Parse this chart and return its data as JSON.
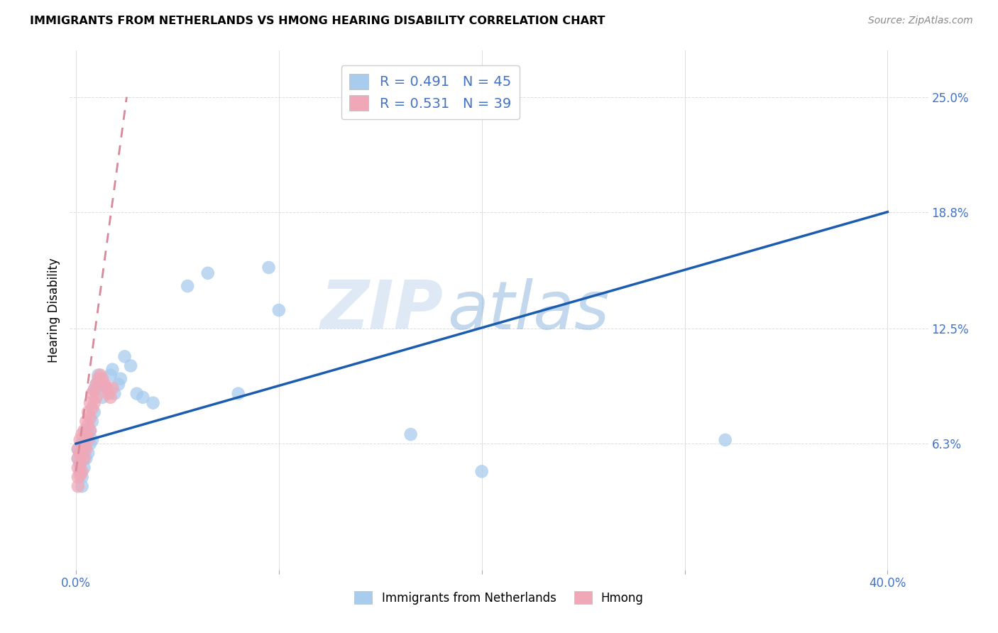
{
  "title": "IMMIGRANTS FROM NETHERLANDS VS HMONG HEARING DISABILITY CORRELATION CHART",
  "source": "Source: ZipAtlas.com",
  "ylabel": "Hearing Disability",
  "x_tick_labels": [
    "0.0%",
    "",
    "",
    "",
    "40.0%"
  ],
  "x_tick_values": [
    0.0,
    0.1,
    0.2,
    0.3,
    0.4
  ],
  "y_tick_labels": [
    "6.3%",
    "12.5%",
    "18.8%",
    "25.0%"
  ],
  "y_tick_values": [
    0.063,
    0.125,
    0.188,
    0.25
  ],
  "xlim": [
    -0.003,
    0.42
  ],
  "ylim": [
    -0.005,
    0.275
  ],
  "legend_entry1": "R = 0.491   N = 45",
  "legend_entry2": "R = 0.531   N = 39",
  "legend_label1": "Immigrants from Netherlands",
  "legend_label2": "Hmong",
  "color_blue": "#A8CCEE",
  "color_pink": "#F0A8B8",
  "color_blue_line": "#1A5CB0",
  "color_pink_line": "#D88898",
  "watermark_zip": "ZIP",
  "watermark_atlas": "atlas",
  "blue_scatter_x": [
    0.001,
    0.001,
    0.002,
    0.002,
    0.002,
    0.003,
    0.003,
    0.003,
    0.004,
    0.004,
    0.004,
    0.005,
    0.005,
    0.006,
    0.006,
    0.007,
    0.007,
    0.008,
    0.008,
    0.009,
    0.009,
    0.01,
    0.011,
    0.012,
    0.013,
    0.015,
    0.017,
    0.018,
    0.019,
    0.021,
    0.022,
    0.024,
    0.027,
    0.03,
    0.033,
    0.038,
    0.055,
    0.065,
    0.08,
    0.095,
    0.1,
    0.165,
    0.2,
    0.32,
    0.003
  ],
  "blue_scatter_y": [
    0.06,
    0.055,
    0.058,
    0.052,
    0.048,
    0.063,
    0.058,
    0.045,
    0.06,
    0.055,
    0.05,
    0.065,
    0.055,
    0.068,
    0.058,
    0.07,
    0.063,
    0.075,
    0.065,
    0.08,
    0.092,
    0.095,
    0.1,
    0.095,
    0.088,
    0.093,
    0.1,
    0.103,
    0.09,
    0.095,
    0.098,
    0.11,
    0.105,
    0.09,
    0.088,
    0.085,
    0.148,
    0.155,
    0.09,
    0.158,
    0.135,
    0.068,
    0.048,
    0.065,
    0.04
  ],
  "pink_scatter_x": [
    0.001,
    0.001,
    0.001,
    0.001,
    0.001,
    0.002,
    0.002,
    0.002,
    0.002,
    0.003,
    0.003,
    0.003,
    0.003,
    0.004,
    0.004,
    0.004,
    0.005,
    0.005,
    0.005,
    0.006,
    0.006,
    0.006,
    0.007,
    0.007,
    0.007,
    0.008,
    0.008,
    0.009,
    0.009,
    0.01,
    0.01,
    0.011,
    0.012,
    0.013,
    0.014,
    0.015,
    0.016,
    0.017,
    0.018
  ],
  "pink_scatter_y": [
    0.06,
    0.055,
    0.05,
    0.045,
    0.04,
    0.065,
    0.058,
    0.052,
    0.046,
    0.068,
    0.063,
    0.057,
    0.048,
    0.07,
    0.062,
    0.055,
    0.075,
    0.068,
    0.06,
    0.08,
    0.073,
    0.065,
    0.085,
    0.077,
    0.07,
    0.09,
    0.082,
    0.092,
    0.085,
    0.095,
    0.088,
    0.098,
    0.1,
    0.098,
    0.095,
    0.093,
    0.09,
    0.088,
    0.093
  ],
  "blue_trend_x": [
    0.0,
    0.4
  ],
  "blue_trend_y": [
    0.063,
    0.188
  ],
  "pink_trend_x": [
    0.0,
    0.025
  ],
  "pink_trend_y": [
    0.048,
    0.25
  ]
}
